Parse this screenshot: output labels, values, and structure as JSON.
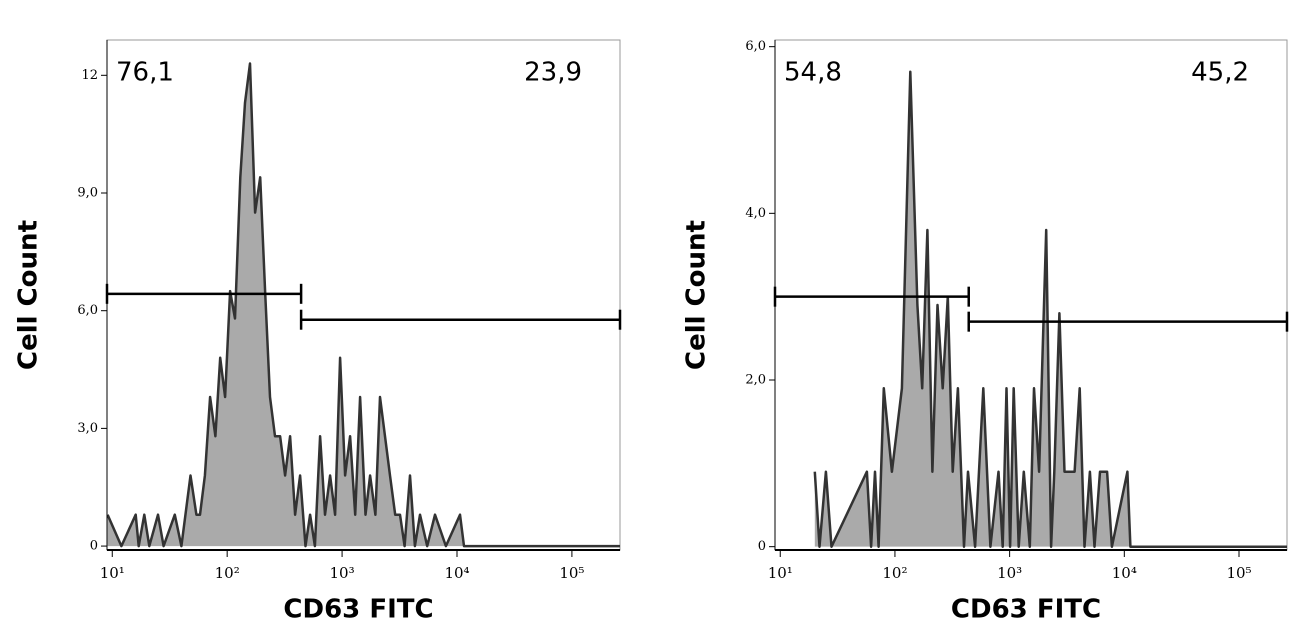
{
  "chart_data": [
    {
      "type": "area",
      "xlabel": "CD63 FITC",
      "ylabel": "Cell Count",
      "xscale": "log",
      "xlim": [
        9,
        262144
      ],
      "ylim": [
        -0.1,
        12.9
      ],
      "xticks": [
        {
          "value": 10,
          "label": "10¹"
        },
        {
          "value": 100,
          "label": "10²"
        },
        {
          "value": 1000,
          "label": "10³"
        },
        {
          "value": 10000,
          "label": "10⁴"
        },
        {
          "value": 100000,
          "label": "10⁵"
        }
      ],
      "yticks": [
        0,
        {
          "value": 3,
          "label": "3,0"
        },
        {
          "value": 6,
          "label": "6,0"
        },
        {
          "value": 9,
          "label": "9,0"
        },
        12
      ],
      "fill": "#aaaaaa",
      "color": "#333333",
      "x": [
        9.1,
        12,
        16,
        17,
        19,
        21,
        25,
        28,
        35,
        40,
        48,
        54,
        58,
        64,
        71,
        79,
        87,
        96,
        106,
        117,
        130,
        143,
        158,
        175,
        194,
        214,
        236,
        261,
        289,
        319,
        353,
        390,
        431,
        480,
        527,
        580,
        644,
        710,
        787,
        870,
        961,
        1062,
        1175,
        1300,
        1435,
        1600,
        1752,
        1950,
        2140,
        2614,
        2900,
        3193,
        3500,
        3900,
        4300,
        4765,
        5500,
        6440,
        8000,
        10620,
        11500,
        262144
      ],
      "values": [
        0.8,
        0,
        0.8,
        0,
        0.8,
        0,
        0.8,
        0,
        0.8,
        0,
        1.8,
        0.8,
        0.8,
        1.8,
        3.8,
        2.8,
        4.8,
        3.8,
        6.5,
        5.8,
        9.4,
        11.3,
        12.3,
        8.5,
        9.4,
        6.5,
        3.8,
        2.8,
        2.8,
        1.8,
        2.8,
        0.8,
        1.8,
        0,
        0.8,
        0,
        2.8,
        0.8,
        1.8,
        0.8,
        4.8,
        1.8,
        2.8,
        0.8,
        3.8,
        0.8,
        1.8,
        0.8,
        3.8,
        1.8,
        0.8,
        0.8,
        0,
        1.8,
        0,
        0.8,
        0,
        0.8,
        0,
        0.8,
        0,
        0
      ],
      "gates": [
        {
          "label": "76,1",
          "range": [
            9,
            440
          ],
          "y": 6.43
        },
        {
          "label": "23,9",
          "range": [
            440,
            262144
          ],
          "y": 5.77
        }
      ]
    },
    {
      "type": "area",
      "xlabel": "CD63 FITC",
      "ylabel": "Cell Count",
      "xscale": "log",
      "xlim": [
        9,
        262144
      ],
      "ylim": [
        -0.04,
        6.08
      ],
      "xticks": [
        {
          "value": 10,
          "label": "10¹"
        },
        {
          "value": 100,
          "label": "10²"
        },
        {
          "value": 1000,
          "label": "10³"
        },
        {
          "value": 10000,
          "label": "10⁴"
        },
        {
          "value": 100000,
          "label": "10⁵"
        }
      ],
      "yticks": [
        0,
        {
          "value": 2,
          "label": "2,0"
        },
        {
          "value": 4,
          "label": "4,0"
        },
        {
          "value": 6,
          "label": "6,0"
        }
      ],
      "fill": "#aaaaaa",
      "color": "#333333",
      "x": [
        20,
        22,
        25,
        28,
        57,
        62,
        67,
        72,
        80,
        94,
        115,
        136,
        157,
        173,
        192,
        212,
        235,
        261,
        289,
        319,
        354,
        400,
        434,
        500,
        589,
        680,
        800,
        870,
        940,
        1010,
        1085,
        1200,
        1330,
        1500,
        1630,
        1806,
        2084,
        2300,
        2450,
        2717,
        3010,
        3685,
        4085,
        4500,
        5010,
        5500,
        6140,
        7080,
        7800,
        10650,
        11300,
        262144
      ],
      "values": [
        0.9,
        0,
        0.9,
        0,
        0.9,
        0,
        0.9,
        0,
        1.9,
        0.9,
        1.9,
        5.7,
        2.9,
        1.9,
        3.8,
        0.9,
        2.9,
        1.9,
        3.0,
        0.9,
        1.9,
        0,
        0.9,
        0,
        1.9,
        0,
        0.9,
        0,
        1.9,
        0,
        1.9,
        0,
        0.9,
        0,
        1.9,
        0.9,
        3.8,
        0,
        0.9,
        2.8,
        0.9,
        0.9,
        1.9,
        0,
        0.9,
        0,
        0.9,
        0.9,
        0,
        0.9,
        0,
        0
      ],
      "gates": [
        {
          "label": "54,8",
          "range": [
            9,
            440
          ],
          "y": 3.0
        },
        {
          "label": "45,2",
          "range": [
            440,
            262144
          ],
          "y": 2.7
        }
      ]
    }
  ]
}
